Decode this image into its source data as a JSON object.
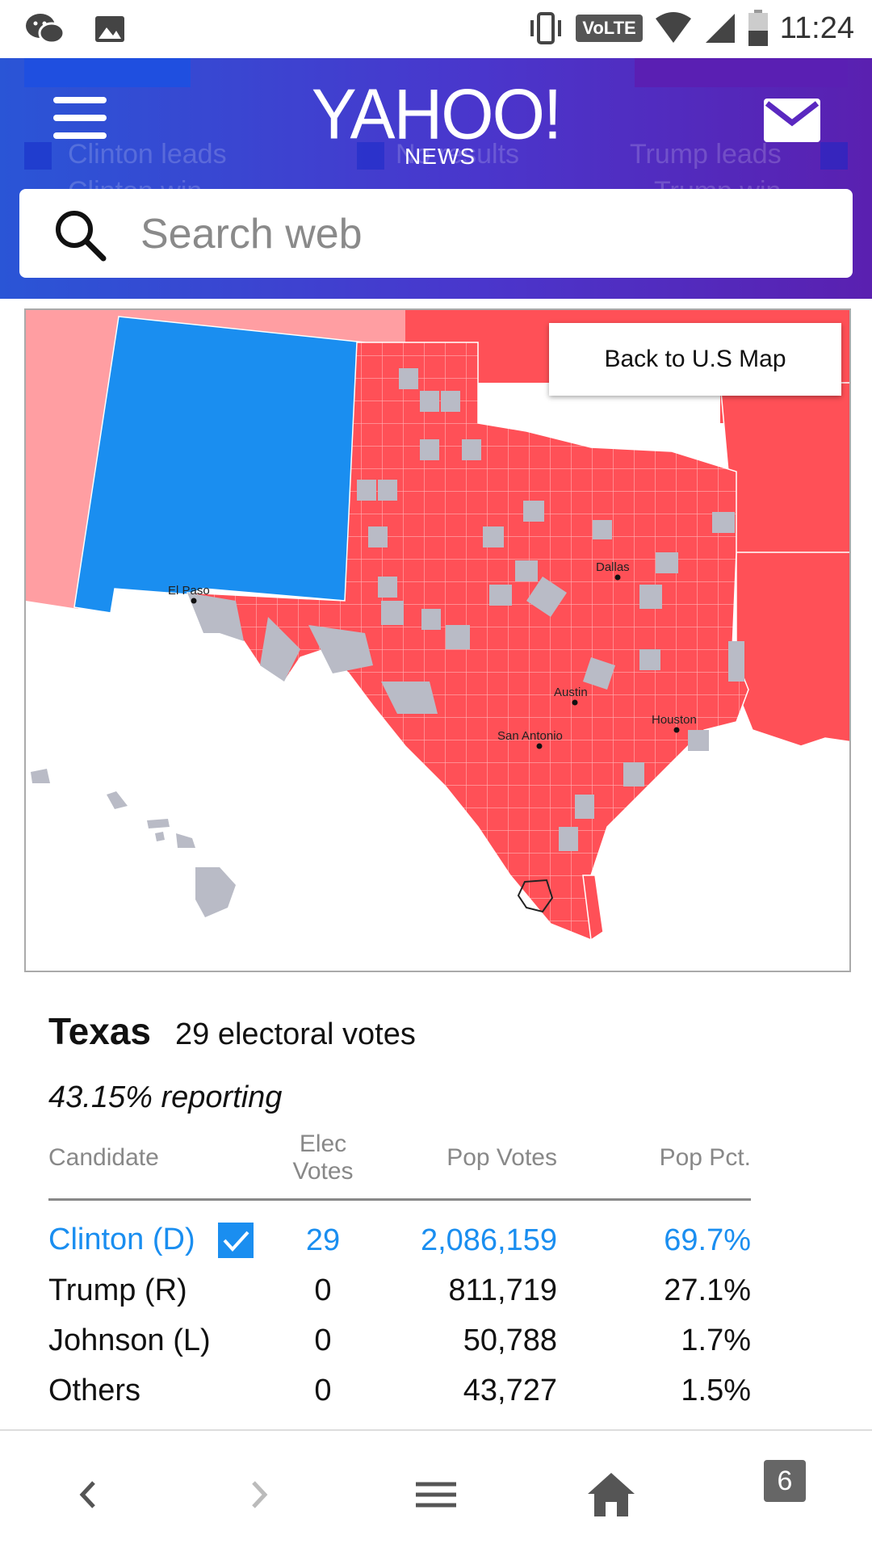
{
  "status_bar": {
    "time": "11:24",
    "network": "VoLTE",
    "icons": [
      "wechat-icon",
      "image-icon",
      "vibrate-icon",
      "wifi-icon",
      "signal-icon",
      "battery-icon"
    ]
  },
  "header": {
    "logo": "YAHOO!",
    "logo_sub": "NEWS",
    "ghost_labels": {
      "left": "Clinton leads",
      "middle": "No results",
      "right": "Trump leads",
      "left2": "Clinton win",
      "right2": "Trump win"
    },
    "colors": {
      "gradient_start": "#2a55d6",
      "gradient_end": "#5a20b0"
    }
  },
  "search": {
    "placeholder": "Search web"
  },
  "map": {
    "back_button": "Back to U.S Map",
    "cities": [
      {
        "name": "El Paso"
      },
      {
        "name": "Dallas"
      },
      {
        "name": "Austin"
      },
      {
        "name": "Houston"
      },
      {
        "name": "San Antonio"
      }
    ],
    "colors": {
      "clinton": "#1a8ef0",
      "trump": "#ff5057",
      "trump_light": "#ff9ea2",
      "no_result": "#b9bbc6"
    }
  },
  "results": {
    "state": "Texas",
    "electoral_votes": "29 electoral votes",
    "reporting": "43.15% reporting",
    "headers": {
      "candidate": "Candidate",
      "elec": "Elec Votes",
      "pop": "Pop Votes",
      "pct": "Pop Pct."
    },
    "rows": [
      {
        "name": "Clinton  (D)",
        "elec": "29",
        "pop": "2,086,159",
        "pct": "69.7%",
        "winner": true
      },
      {
        "name": "Trump  (R)",
        "elec": "0",
        "pop": "811,719",
        "pct": "27.1%"
      },
      {
        "name": "Johnson  (L)",
        "elec": "0",
        "pop": "50,788",
        "pct": "1.7%"
      },
      {
        "name": "Others",
        "elec": "0",
        "pop": "43,727",
        "pct": "1.5%"
      }
    ]
  },
  "bottom_nav": {
    "tab_count": "6",
    "icons": [
      "back-icon",
      "forward-icon",
      "menu-icon",
      "home-icon",
      "tabs-icon"
    ]
  }
}
